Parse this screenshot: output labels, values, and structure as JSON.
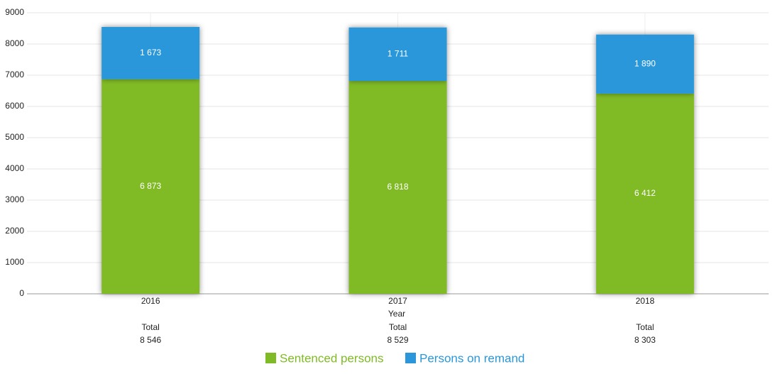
{
  "chart_data": {
    "type": "stacked-bar",
    "categories": [
      "2016",
      "2017",
      "2018"
    ],
    "x_label": "Year",
    "series": [
      {
        "name": "Sentenced persons",
        "color": "#80bb27",
        "values": [
          6873,
          6818,
          6412
        ],
        "value_labels": [
          "6 873",
          "6 818",
          "6 412"
        ]
      },
      {
        "name": "Persons on remand",
        "color": "#2b97da",
        "values": [
          1673,
          1711,
          1890
        ],
        "value_labels": [
          "1 673",
          "1 711",
          "1 890"
        ]
      }
    ],
    "totals": {
      "label": "Total",
      "values": [
        8546,
        8529,
        8303
      ],
      "value_labels": [
        "8 546",
        "8 529",
        "8 303"
      ]
    },
    "ylim": [
      0,
      9000
    ],
    "yticks": [
      0,
      1000,
      2000,
      3000,
      4000,
      5000,
      6000,
      7000,
      8000,
      9000
    ],
    "grid": true
  }
}
